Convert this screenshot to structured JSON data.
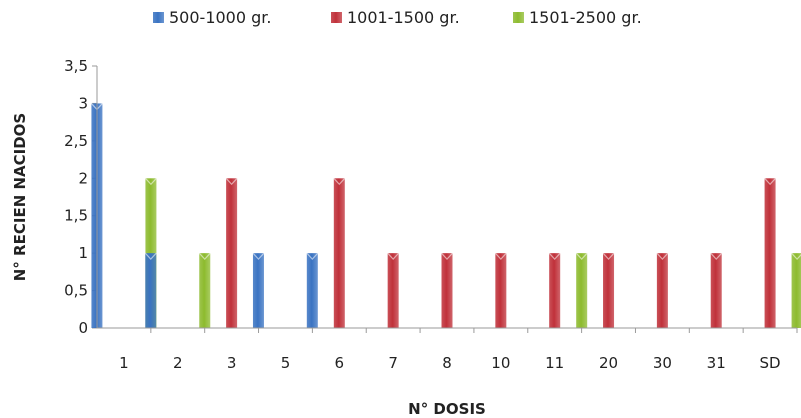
{
  "chart_data": {
    "type": "bar",
    "title": "",
    "xlabel": "N° DOSIS",
    "ylabel": "N° RECIEN NACIDOS",
    "categories": [
      "1",
      "2",
      "3",
      "5",
      "6",
      "7",
      "8",
      "10",
      "11",
      "20",
      "30",
      "31",
      "SD"
    ],
    "ylim": [
      0,
      3.5
    ],
    "yticks": [
      "0",
      "0,5",
      "1",
      "1,5",
      "2",
      "2,5",
      "3",
      "3,5"
    ],
    "grid": false,
    "legend_position": "top",
    "series": [
      {
        "name": "500-1000 gr.",
        "color": "#3A73C2",
        "values": [
          3,
          1,
          0,
          1,
          1,
          0,
          0,
          0,
          0,
          0,
          0,
          0,
          0
        ]
      },
      {
        "name": "1001-1500 gr.",
        "color": "#C0313A",
        "values": [
          0,
          0,
          2,
          0,
          2,
          1,
          1,
          1,
          1,
          1,
          1,
          1,
          2
        ]
      },
      {
        "name": "1501-2500 gr.",
        "color": "#8DBB2E",
        "values": [
          2,
          1,
          0,
          0,
          0,
          0,
          0,
          0,
          1,
          0,
          0,
          0,
          1
        ]
      }
    ]
  }
}
